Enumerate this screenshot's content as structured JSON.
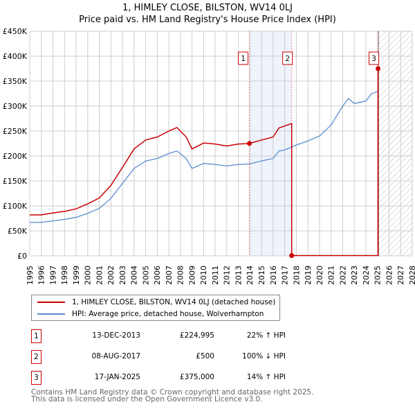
{
  "chart_data": {
    "type": "line",
    "title": "1, HIMLEY CLOSE, BILSTON, WV14 0LJ",
    "subtitle": "Price paid vs. HM Land Registry's House Price Index (HPI)",
    "xlim": [
      1995,
      2028
    ],
    "ylim": [
      0,
      450000
    ],
    "y_ticks": [
      0,
      50000,
      100000,
      150000,
      200000,
      250000,
      300000,
      350000,
      400000,
      450000
    ],
    "y_tick_labels": [
      "£0",
      "£50K",
      "£100K",
      "£150K",
      "£200K",
      "£250K",
      "£300K",
      "£350K",
      "£400K",
      "£450K"
    ],
    "x_ticks": [
      1995,
      1996,
      1997,
      1998,
      1999,
      2000,
      2001,
      2002,
      2003,
      2004,
      2005,
      2006,
      2007,
      2008,
      2009,
      2010,
      2011,
      2012,
      2013,
      2014,
      2015,
      2016,
      2017,
      2018,
      2019,
      2020,
      2021,
      2022,
      2023,
      2024,
      2025,
      2026,
      2027,
      2028
    ],
    "grid": true,
    "shaded_range": [
      2013.95,
      2017.6
    ],
    "future_hatch_from": 2025.1,
    "series": [
      {
        "name": "1, HIMLEY CLOSE, BILSTON, WV14 0LJ (detached house)",
        "color": "#cc0000",
        "x": [
          1995,
          1996,
          1997,
          1998,
          1999,
          2000,
          2001,
          2002,
          2003,
          2004,
          2005,
          2006,
          2007,
          2007.7,
          2008.5,
          2009,
          2010,
          2011,
          2012,
          2013,
          2013.95,
          2015,
          2016,
          2016.5,
          2017.6,
          2017.6,
          2018,
          2020,
          2022,
          2024,
          2025.05,
          2025.05,
          2025.1
        ],
        "y": [
          82000,
          82000,
          86000,
          89000,
          94000,
          104000,
          116000,
          141000,
          177000,
          214000,
          232000,
          238000,
          250000,
          257000,
          238000,
          214000,
          226000,
          224000,
          220000,
          224000,
          224995,
          232000,
          238000,
          256000,
          265000,
          500,
          500,
          500,
          500,
          500,
          500,
          375000,
          375000
        ]
      },
      {
        "name": "HPI: Average price, detached house, Wolverhampton",
        "color": "#5b8bd0",
        "x": [
          1995,
          1996,
          1997,
          1998,
          1999,
          2000,
          2001,
          2002,
          2003,
          2004,
          2005,
          2006,
          2007,
          2007.7,
          2008.5,
          2009,
          2010,
          2011,
          2012,
          2013,
          2013.95,
          2015,
          2016,
          2016.5,
          2017,
          2018,
          2019,
          2020,
          2021,
          2022,
          2022.5,
          2023,
          2024,
          2024.5,
          2025.1
        ],
        "y": [
          67000,
          67000,
          70000,
          73000,
          77000,
          85000,
          95000,
          115000,
          145000,
          175000,
          190000,
          195000,
          205000,
          210000,
          195000,
          175000,
          185000,
          183000,
          180000,
          183000,
          184000,
          190000,
          195000,
          210000,
          212000,
          222000,
          230000,
          240000,
          262000,
          300000,
          315000,
          305000,
          310000,
          325000,
          330000
        ]
      }
    ],
    "annotations": [
      {
        "label": "1",
        "x": 2013.95,
        "y": 224995
      },
      {
        "label": "2",
        "x": 2017.6,
        "y": 500
      },
      {
        "label": "3",
        "x": 2025.05,
        "y": 375000
      }
    ]
  },
  "transactions": [
    {
      "num": "1",
      "date": "13-DEC-2013",
      "price": "£224,995",
      "hpi": "22% ↑ HPI"
    },
    {
      "num": "2",
      "date": "08-AUG-2017",
      "price": "£500",
      "hpi": "100% ↓ HPI"
    },
    {
      "num": "3",
      "date": "17-JAN-2025",
      "price": "£375,000",
      "hpi": "14% ↑ HPI"
    }
  ],
  "footer": [
    "Contains HM Land Registry data © Crown copyright and database right 2025.",
    "This data is licensed under the Open Government Licence v3.0."
  ]
}
